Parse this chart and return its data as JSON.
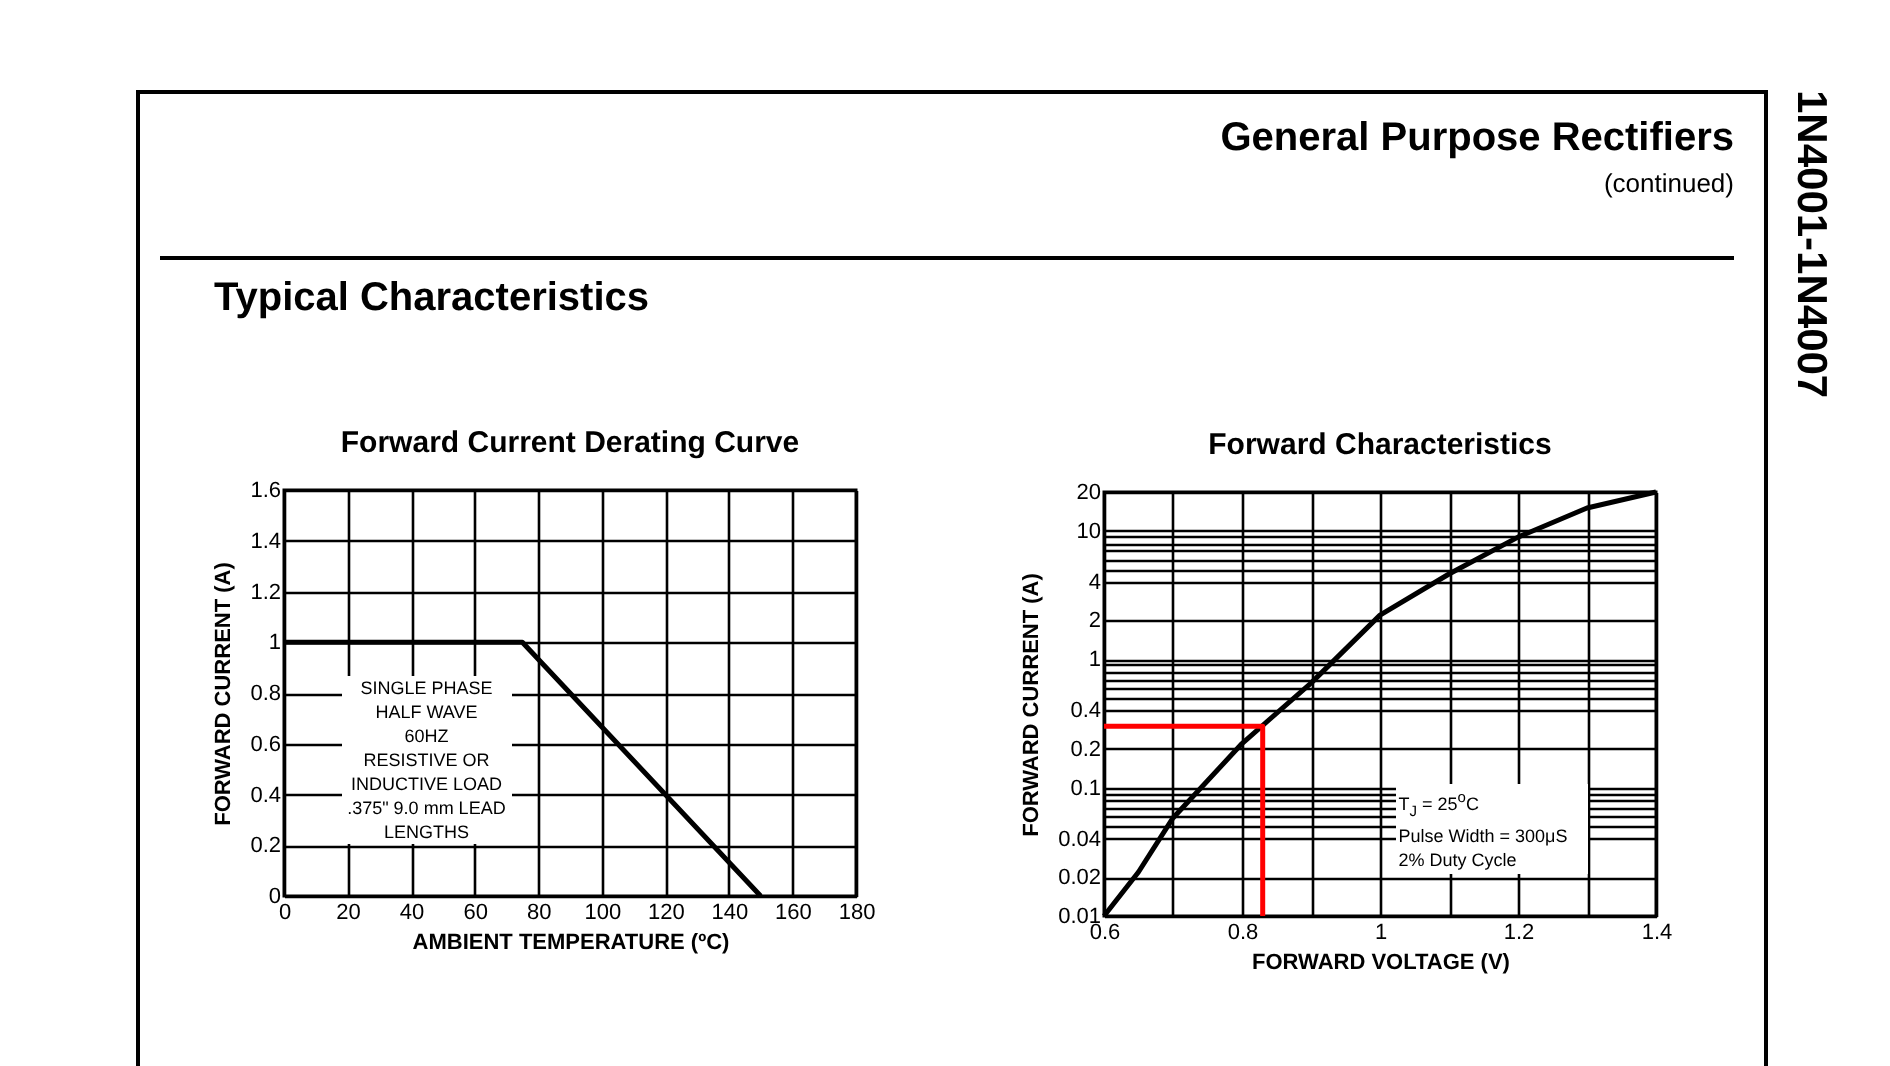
{
  "chart_data": [
    {
      "type": "line",
      "title": "Forward Current Derating Curve",
      "xlabel": "AMBIENT TEMPERATURE (ºC)",
      "ylabel": "FORWARD CURRENT (A)",
      "x": [
        0,
        75,
        150
      ],
      "series": [
        {
          "color": "#000000",
          "values": [
            1,
            1,
            0
          ]
        }
      ],
      "xlim": [
        0,
        180
      ],
      "xticks": [
        0,
        20,
        40,
        60,
        80,
        100,
        120,
        140,
        160,
        180
      ],
      "ylim": [
        0,
        1.6
      ],
      "yticks": [
        0,
        0.2,
        0.4,
        0.6,
        0.8,
        1,
        1.2,
        1.4,
        1.6
      ],
      "grid": true,
      "line_style": "solid",
      "annotations": [
        "General Purpose Rectifiers",
        "(continued)",
        "Typical Characteristics",
        "1N4001-1N4007",
        "SINGLE PHASE\nHALF WAVE\n60HZ\nRESISTIVE OR\nINDUCTIVE LOAD\n.375\" 9.0 mm LEAD\nLENGTHS"
      ]
    },
    {
      "type": "line",
      "title": "Forward Characteristics",
      "xlabel": "FORWARD VOLTAGE (V)",
      "ylabel": "FORWARD CURRENT (A)",
      "series": [
        {
          "color": "#000000",
          "x": [
            0.6,
            0.65,
            0.7,
            0.8,
            0.9,
            1.0,
            1.1,
            1.2,
            1.3,
            1.4
          ],
          "values": [
            0.01,
            0.022,
            0.058,
            0.22,
            0.65,
            2.2,
            4.6,
            8.9,
            15,
            20
          ]
        },
        {
          "color": "#ff0000",
          "x": [
            0.6,
            0.83,
            0.83
          ],
          "values": [
            0.3,
            0.3,
            0.01
          ]
        }
      ],
      "xlim": [
        0.6,
        1.4
      ],
      "xticks": [
        0.6,
        {
          "value": 0.7,
          "label": null
        },
        0.8,
        {
          "value": 0.9,
          "label": null
        },
        1,
        {
          "value": 1.1,
          "label": null
        },
        1.2,
        {
          "value": 1.3,
          "label": null
        },
        1.4
      ],
      "ylim": [
        0.01,
        20
      ],
      "yticks": [
        0.01,
        0.02,
        0.04,
        {
          "value": 0.05,
          "label": null
        },
        {
          "value": 0.06,
          "label": null
        },
        {
          "value": 0.07,
          "label": null
        },
        {
          "value": 0.08,
          "label": null
        },
        {
          "value": 0.09,
          "label": null
        },
        0.1,
        0.2,
        0.4,
        {
          "value": 0.5,
          "label": null
        },
        {
          "value": 0.6,
          "label": null
        },
        {
          "value": 0.7,
          "label": null
        },
        {
          "value": 0.8,
          "label": null
        },
        {
          "value": 0.9,
          "label": null
        },
        1,
        2,
        4,
        {
          "value": 5,
          "label": null
        },
        {
          "value": 6,
          "label": null
        },
        {
          "value": 7,
          "label": null
        },
        {
          "value": 8,
          "label": null
        },
        {
          "value": 9,
          "label": null
        },
        10,
        20
      ],
      "log": true,
      "grid": true,
      "line_style": "solid",
      "annotations": [
        "T$_{J}$ = 25$^{o}$C\nPulse Width = 300μS\n2% Duty Cycle"
      ]
    }
  ]
}
